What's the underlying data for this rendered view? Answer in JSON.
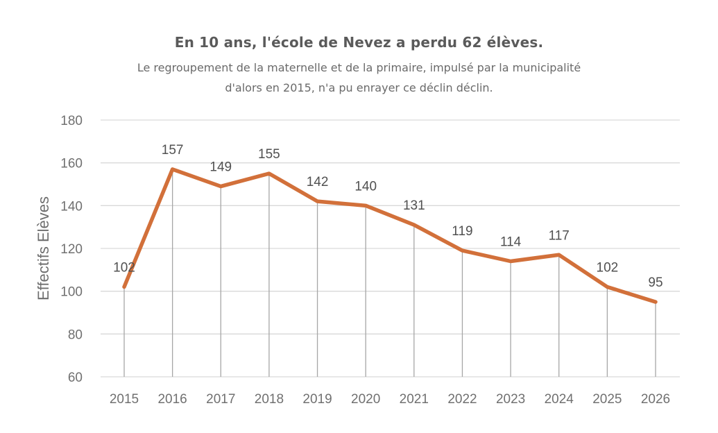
{
  "header": {
    "title": "En 10 ans, l'école de Nevez a perdu 62 élèves.",
    "subtitle_line1": "Le regroupement de la maternelle et de la primaire, impulsé par la municipalité",
    "subtitle_line2": "d'alors en 2015,  n'a pu enrayer ce déclin déclin."
  },
  "chart_data": {
    "type": "line",
    "title": "En 10 ans, l'école de Nevez a perdu 62 élèves.",
    "subtitle": "Le regroupement de la maternelle et de la primaire, impulsé par la municipalité d'alors en 2015,  n'a pu enrayer ce déclin déclin.",
    "xlabel": "",
    "ylabel": "Effectifs Elèves",
    "categories": [
      "2015",
      "2016",
      "2017",
      "2018",
      "2019",
      "2020",
      "2021",
      "2022",
      "2023",
      "2024",
      "2025",
      "2026"
    ],
    "series": [
      {
        "name": "Effectifs Elèves",
        "values": [
          102,
          157,
          149,
          155,
          142,
          140,
          131,
          119,
          114,
          117,
          102,
          95
        ],
        "color": "#d2703a"
      }
    ],
    "ylim": [
      60,
      180
    ],
    "yticks": [
      60,
      80,
      100,
      120,
      140,
      160,
      180
    ],
    "grid": true,
    "drop_lines": true,
    "data_labels": true,
    "legend": "none"
  }
}
